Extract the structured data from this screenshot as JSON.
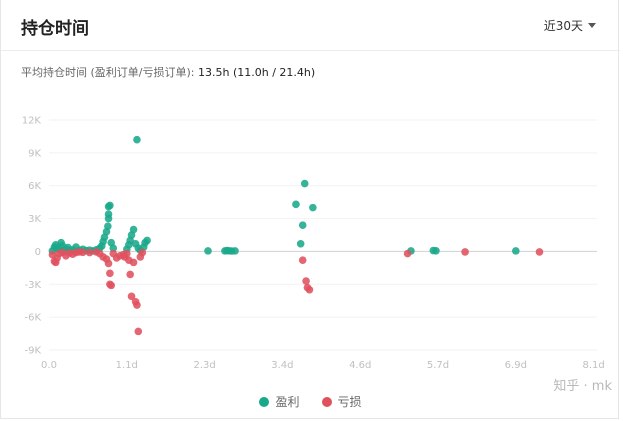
{
  "header": {
    "title": "持仓时间",
    "range_label": "近30天"
  },
  "summary": {
    "label": "平均持仓时间 (盈利订单/亏损订单):",
    "value": "13.5h (11.0h / 21.4h)"
  },
  "colors": {
    "profit": "#1aa88a",
    "loss": "#e0515e"
  },
  "watermark": "知乎 · mk",
  "chart_data": {
    "type": "scatter",
    "x_unit": "days",
    "xlim": [
      0,
      8.1
    ],
    "ylim": [
      -9000,
      12000
    ],
    "x_ticks": [
      {
        "value": 0,
        "label": "0.0"
      },
      {
        "value": 1.15,
        "label": "1.1d"
      },
      {
        "value": 2.3,
        "label": "2.3d"
      },
      {
        "value": 3.45,
        "label": "3.4d"
      },
      {
        "value": 4.6,
        "label": "4.6d"
      },
      {
        "value": 5.75,
        "label": "5.7d"
      },
      {
        "value": 6.9,
        "label": "6.9d"
      },
      {
        "value": 8.05,
        "label": "8.1d"
      }
    ],
    "y_ticks": [
      {
        "value": 12000,
        "label": "12K"
      },
      {
        "value": 9000,
        "label": "9K"
      },
      {
        "value": 6000,
        "label": "6K"
      },
      {
        "value": 3000,
        "label": "3K"
      },
      {
        "value": 0,
        "label": "0"
      },
      {
        "value": -3000,
        "label": "-3K"
      },
      {
        "value": -6000,
        "label": "-6K"
      },
      {
        "value": -9000,
        "label": "-9K"
      }
    ],
    "grid": true,
    "legend_position": "bottom",
    "series": [
      {
        "name": "盈利",
        "color": "#1aa88a",
        "points": [
          [
            0.05,
            50
          ],
          [
            0.08,
            400
          ],
          [
            0.1,
            600
          ],
          [
            0.12,
            300
          ],
          [
            0.15,
            150
          ],
          [
            0.18,
            800
          ],
          [
            0.2,
            500
          ],
          [
            0.22,
            100
          ],
          [
            0.25,
            200
          ],
          [
            0.28,
            350
          ],
          [
            0.3,
            80
          ],
          [
            0.35,
            150
          ],
          [
            0.4,
            400
          ],
          [
            0.45,
            100
          ],
          [
            0.5,
            200
          ],
          [
            0.55,
            80
          ],
          [
            0.6,
            120
          ],
          [
            0.65,
            50
          ],
          [
            0.7,
            150
          ],
          [
            0.75,
            300
          ],
          [
            0.78,
            500
          ],
          [
            0.8,
            900
          ],
          [
            0.82,
            1300
          ],
          [
            0.85,
            1800
          ],
          [
            0.87,
            2300
          ],
          [
            0.88,
            3000
          ],
          [
            0.88,
            3400
          ],
          [
            0.88,
            4100
          ],
          [
            0.9,
            4200
          ],
          [
            0.92,
            800
          ],
          [
            0.95,
            300
          ],
          [
            1.15,
            200
          ],
          [
            1.18,
            600
          ],
          [
            1.2,
            1000
          ],
          [
            1.22,
            1500
          ],
          [
            1.25,
            2000
          ],
          [
            1.28,
            700
          ],
          [
            1.3,
            10200
          ],
          [
            1.32,
            300
          ],
          [
            1.35,
            100
          ],
          [
            1.4,
            400
          ],
          [
            1.42,
            800
          ],
          [
            1.45,
            1000
          ],
          [
            2.35,
            50
          ],
          [
            2.6,
            50
          ],
          [
            2.63,
            80
          ],
          [
            2.66,
            60
          ],
          [
            2.7,
            40
          ],
          [
            2.75,
            50
          ],
          [
            3.65,
            4300
          ],
          [
            3.72,
            700
          ],
          [
            3.75,
            2400
          ],
          [
            3.78,
            6200
          ],
          [
            3.9,
            4000
          ],
          [
            5.35,
            50
          ],
          [
            5.68,
            80
          ],
          [
            5.72,
            60
          ],
          [
            6.9,
            50
          ]
        ]
      },
      {
        "name": "亏损",
        "color": "#e0515e",
        "points": [
          [
            0.05,
            -300
          ],
          [
            0.08,
            -900
          ],
          [
            0.1,
            -1000
          ],
          [
            0.12,
            -600
          ],
          [
            0.15,
            -200
          ],
          [
            0.2,
            -100
          ],
          [
            0.25,
            -400
          ],
          [
            0.3,
            -150
          ],
          [
            0.35,
            -250
          ],
          [
            0.4,
            -100
          ],
          [
            0.45,
            -50
          ],
          [
            0.5,
            -80
          ],
          [
            0.6,
            -100
          ],
          [
            0.7,
            -50
          ],
          [
            0.75,
            -200
          ],
          [
            0.8,
            -500
          ],
          [
            0.85,
            -700
          ],
          [
            0.88,
            -1100
          ],
          [
            0.9,
            -2000
          ],
          [
            0.9,
            -3000
          ],
          [
            0.92,
            -3100
          ],
          [
            0.95,
            -200
          ],
          [
            1.0,
            -600
          ],
          [
            1.05,
            -400
          ],
          [
            1.1,
            -300
          ],
          [
            1.12,
            -500
          ],
          [
            1.15,
            -200
          ],
          [
            1.18,
            -800
          ],
          [
            1.2,
            -2100
          ],
          [
            1.22,
            -4100
          ],
          [
            1.25,
            -1000
          ],
          [
            1.28,
            -4600
          ],
          [
            1.3,
            -4900
          ],
          [
            1.32,
            -7300
          ],
          [
            1.35,
            -500
          ],
          [
            1.38,
            -100
          ],
          [
            3.75,
            -800
          ],
          [
            3.8,
            -2700
          ],
          [
            3.82,
            -3300
          ],
          [
            3.85,
            -3500
          ],
          [
            5.3,
            -200
          ],
          [
            6.15,
            -50
          ],
          [
            7.25,
            -50
          ]
        ]
      }
    ]
  }
}
